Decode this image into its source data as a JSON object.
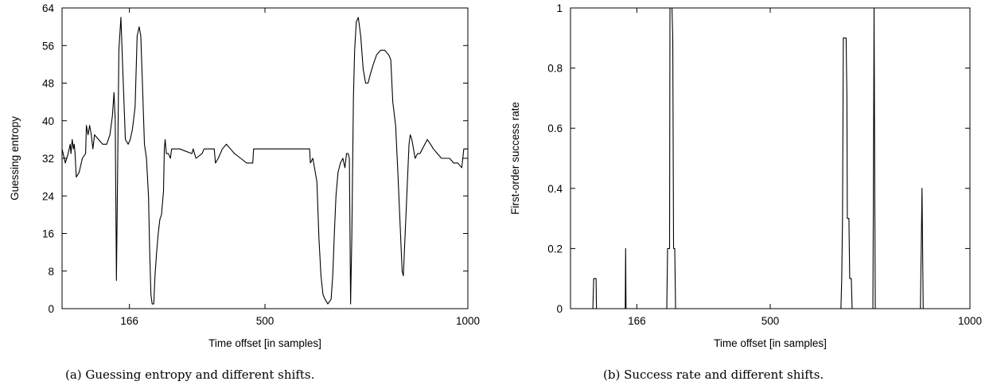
{
  "chart_data": [
    {
      "type": "line",
      "caption": "(a) Guessing entropy and different shifts.",
      "xlabel": "Time offset [in samples]",
      "ylabel": "Guessing entropy",
      "xlim": [
        0,
        1000
      ],
      "ylim": [
        0,
        64
      ],
      "xticks": [
        166,
        500,
        1000
      ],
      "yticks": [
        0,
        8,
        16,
        24,
        32,
        40,
        48,
        56,
        64
      ],
      "grid": false,
      "series": [
        {
          "points": [
            [
              0,
              34
            ],
            [
              8,
              31
            ],
            [
              15,
              33
            ],
            [
              20,
              35
            ],
            [
              22,
              33
            ],
            [
              25,
              36
            ],
            [
              28,
              34
            ],
            [
              30,
              35
            ],
            [
              32,
              33
            ],
            [
              35,
              28
            ],
            [
              42,
              29
            ],
            [
              50,
              32
            ],
            [
              58,
              33
            ],
            [
              60,
              39
            ],
            [
              64,
              37
            ],
            [
              68,
              39
            ],
            [
              72,
              37
            ],
            [
              76,
              34
            ],
            [
              80,
              37
            ],
            [
              90,
              36
            ],
            [
              100,
              35
            ],
            [
              110,
              35
            ],
            [
              118,
              37
            ],
            [
              124,
              41
            ],
            [
              128,
              46
            ],
            [
              131,
              40
            ],
            [
              134,
              6
            ],
            [
              137,
              30
            ],
            [
              140,
              55
            ],
            [
              145,
              62
            ],
            [
              150,
              50
            ],
            [
              156,
              36
            ],
            [
              163,
              35
            ],
            [
              168,
              36
            ],
            [
              173,
              38
            ],
            [
              176,
              40
            ],
            [
              180,
              43
            ],
            [
              185,
              58
            ],
            [
              190,
              60
            ],
            [
              194,
              58
            ],
            [
              198,
              48
            ],
            [
              203,
              35
            ],
            [
              208,
              32
            ],
            [
              213,
              24
            ],
            [
              216,
              12
            ],
            [
              219,
              3
            ],
            [
              222,
              1
            ],
            [
              226,
              1
            ],
            [
              229,
              7
            ],
            [
              233,
              12
            ],
            [
              237,
              16
            ],
            [
              241,
              19
            ],
            [
              245,
              20
            ],
            [
              250,
              25
            ],
            [
              252,
              34
            ],
            [
              254,
              36
            ],
            [
              257,
              33
            ],
            [
              262,
              33
            ],
            [
              267,
              32
            ],
            [
              270,
              34
            ],
            [
              290,
              34
            ],
            [
              320,
              33
            ],
            [
              323,
              34
            ],
            [
              330,
              32
            ],
            [
              345,
              33
            ],
            [
              350,
              34
            ],
            [
              375,
              34
            ],
            [
              378,
              31
            ],
            [
              385,
              32
            ],
            [
              395,
              34
            ],
            [
              405,
              35
            ],
            [
              415,
              34
            ],
            [
              425,
              33
            ],
            [
              440,
              32
            ],
            [
              455,
              31
            ],
            [
              470,
              31
            ],
            [
              472,
              34
            ],
            [
              485,
              34
            ],
            [
              520,
              34
            ],
            [
              560,
              34
            ],
            [
              610,
              34
            ],
            [
              612,
              31
            ],
            [
              618,
              32
            ],
            [
              622,
              30
            ],
            [
              628,
              27
            ],
            [
              633,
              15
            ],
            [
              638,
              7
            ],
            [
              643,
              3
            ],
            [
              648,
              2
            ],
            [
              655,
              1
            ],
            [
              663,
              2
            ],
            [
              667,
              7
            ],
            [
              671,
              16
            ],
            [
              675,
              24
            ],
            [
              680,
              29
            ],
            [
              686,
              31
            ],
            [
              692,
              32
            ],
            [
              697,
              30
            ],
            [
              701,
              33
            ],
            [
              705,
              33
            ],
            [
              708,
              32
            ],
            [
              711,
              1
            ],
            [
              714,
              15
            ],
            [
              718,
              45
            ],
            [
              721,
              55
            ],
            [
              725,
              61
            ],
            [
              730,
              62
            ],
            [
              736,
              58
            ],
            [
              742,
              51
            ],
            [
              748,
              48
            ],
            [
              754,
              48
            ],
            [
              760,
              50
            ],
            [
              767,
              52
            ],
            [
              775,
              54
            ],
            [
              785,
              55
            ],
            [
              795,
              55
            ],
            [
              805,
              54
            ],
            [
              810,
              53
            ],
            [
              815,
              44
            ],
            [
              822,
              39
            ],
            [
              828,
              28
            ],
            [
              833,
              18
            ],
            [
              838,
              8
            ],
            [
              841,
              7
            ],
            [
              845,
              15
            ],
            [
              850,
              25
            ],
            [
              855,
              35
            ],
            [
              858,
              37
            ],
            [
              862,
              36
            ],
            [
              866,
              34
            ],
            [
              870,
              32
            ],
            [
              876,
              33
            ],
            [
              882,
              33
            ],
            [
              888,
              34
            ],
            [
              894,
              35
            ],
            [
              900,
              36
            ],
            [
              908,
              35
            ],
            [
              915,
              34
            ],
            [
              925,
              33
            ],
            [
              935,
              32
            ],
            [
              945,
              32
            ],
            [
              955,
              32
            ],
            [
              965,
              31
            ],
            [
              975,
              31
            ],
            [
              985,
              30
            ],
            [
              990,
              34
            ],
            [
              1000,
              34
            ]
          ]
        }
      ]
    },
    {
      "type": "line",
      "caption": "(b) Success rate and different shifts.",
      "xlabel": "Time offset [in samples]",
      "ylabel": "First-order success rate",
      "xlim": [
        0,
        1000
      ],
      "ylim": [
        0,
        1
      ],
      "xticks": [
        166,
        500,
        1000
      ],
      "yticks": [
        0,
        0.2,
        0.4,
        0.6,
        0.8,
        1
      ],
      "ytick_labels": [
        "0",
        "0.2",
        "0.4",
        "0.6",
        "0.8",
        "1"
      ],
      "grid": false,
      "series": [
        {
          "points": [
            [
              0,
              0
            ],
            [
              56,
              0
            ],
            [
              58,
              0.1
            ],
            [
              64,
              0.1
            ],
            [
              65,
              0
            ],
            [
              137,
              0
            ],
            [
              138,
              0.2
            ],
            [
              139,
              0
            ],
            [
              241,
              0
            ],
            [
              243,
              0.2
            ],
            [
              248,
              0.2
            ],
            [
              249,
              1
            ],
            [
              254,
              1
            ],
            [
              256,
              0.9
            ],
            [
              258,
              0.2
            ],
            [
              261,
              0.2
            ],
            [
              263,
              0
            ],
            [
              677,
              0
            ],
            [
              679,
              0.1
            ],
            [
              681,
              0.3
            ],
            [
              683,
              0.9
            ],
            [
              690,
              0.9
            ],
            [
              692,
              0.7
            ],
            [
              693,
              0.3
            ],
            [
              697,
              0.3
            ],
            [
              699,
              0.1
            ],
            [
              703,
              0.1
            ],
            [
              705,
              0
            ],
            [
              757,
              0
            ],
            [
              758,
              0.3
            ],
            [
              760,
              1
            ],
            [
              762,
              0.3
            ],
            [
              763,
              0
            ],
            [
              876,
              0
            ],
            [
              877,
              0.1
            ],
            [
              880,
              0.4
            ],
            [
              883,
              0
            ],
            [
              1000,
              0
            ]
          ]
        }
      ]
    }
  ]
}
